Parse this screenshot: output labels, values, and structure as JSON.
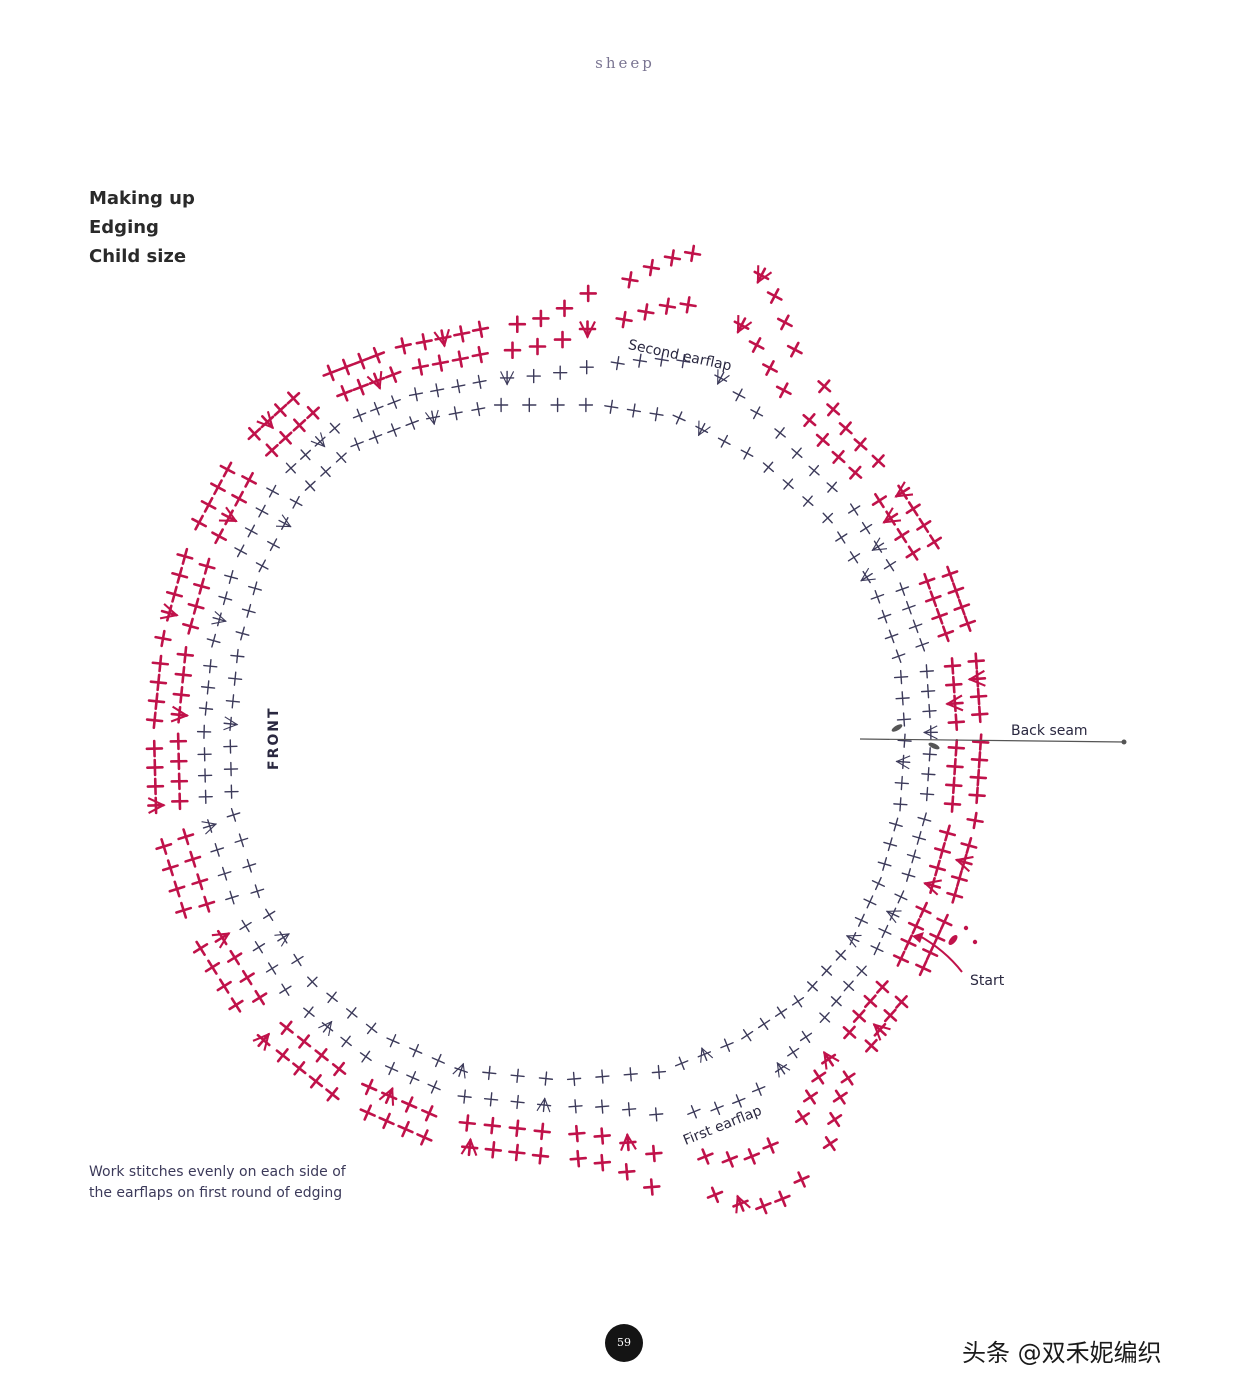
{
  "header": {
    "running_head": "sheep"
  },
  "titles": {
    "line1": "Making up",
    "line2": "Edging",
    "line3": "Child size"
  },
  "labels": {
    "second_earflap": "Second earflap",
    "first_earflap": "First earflap",
    "front": "FRONT",
    "back_seam": "Back seam",
    "start": "Start"
  },
  "note": {
    "line1": "Work stitches evenly on each side of",
    "line2": "the earflaps on first round of edging"
  },
  "footer": {
    "page_number": "59",
    "watermark": "头条 @双禾妮编织"
  },
  "chart_symbols": {
    "single_crochet": "cross",
    "increase": "V-shaped cross",
    "slip_stitch": "dot"
  },
  "colors": {
    "inner_rounds": "#3c3a5a",
    "outer_rounds": "#c0124a",
    "text": "#2a2a2a",
    "lines": "#555555"
  }
}
